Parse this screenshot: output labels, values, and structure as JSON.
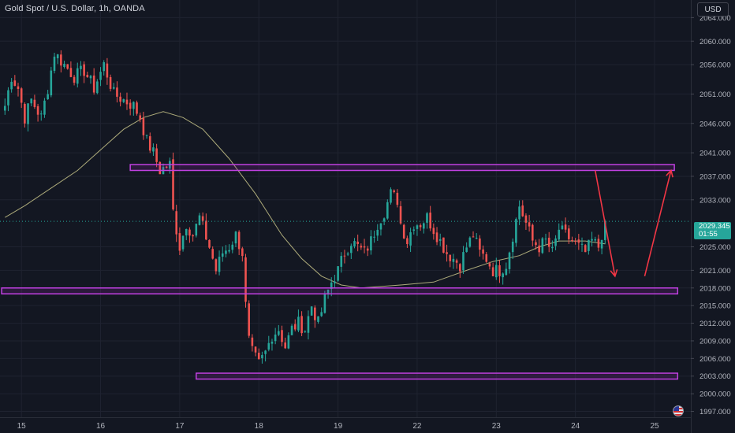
{
  "header": {
    "title": "Gold Spot / U.S. Dollar, 1h, OANDA",
    "currency_button": "USD"
  },
  "last_price": {
    "value": "2029.345",
    "countdown": "01:55"
  },
  "colors": {
    "background": "#131722",
    "up": "#26a69a",
    "down": "#ef5350",
    "ma_line": "#c8c48a",
    "zone": "#c040e0",
    "arrow": "#f23645"
  },
  "chart_data": {
    "type": "candlestick",
    "xlabel": "",
    "ylabel": "",
    "x_ticks": [
      {
        "label": "15",
        "index": 5
      },
      {
        "label": "16",
        "index": 29
      },
      {
        "label": "17",
        "index": 53
      },
      {
        "label": "18",
        "index": 77
      },
      {
        "label": "19",
        "index": 101
      },
      {
        "label": "22",
        "index": 125
      },
      {
        "label": "23",
        "index": 149
      },
      {
        "label": "24",
        "index": 173
      },
      {
        "label": "25",
        "index": 197
      }
    ],
    "y_ticks": [
      "2064.000",
      "2060.000",
      "2056.000",
      "2051.000",
      "2046.000",
      "2041.000",
      "2037.000",
      "2033.000",
      "2025.000",
      "2021.000",
      "2018.000",
      "2015.000",
      "2012.000",
      "2009.000",
      "2006.000",
      "2003.000",
      "2000.000",
      "1997.000"
    ],
    "ylim": [
      1996,
      2067
    ],
    "candle_count": 183,
    "anchors": [
      [
        0,
        2049
      ],
      [
        2,
        2054
      ],
      [
        4,
        2052
      ],
      [
        6,
        2047
      ],
      [
        8,
        2050
      ],
      [
        11,
        2047
      ],
      [
        13,
        2052
      ],
      [
        15,
        2058
      ],
      [
        18,
        2056
      ],
      [
        21,
        2054
      ],
      [
        24,
        2055
      ],
      [
        27,
        2052
      ],
      [
        30,
        2056
      ],
      [
        33,
        2051
      ],
      [
        36,
        2050
      ],
      [
        39,
        2049
      ],
      [
        41,
        2047
      ],
      [
        43,
        2043
      ],
      [
        45,
        2041
      ],
      [
        47,
        2038
      ],
      [
        50,
        2039
      ],
      [
        51,
        2031
      ],
      [
        53,
        2025
      ],
      [
        55,
        2029
      ],
      [
        57,
        2027
      ],
      [
        59,
        2030
      ],
      [
        62,
        2025
      ],
      [
        64,
        2021
      ],
      [
        66,
        2024
      ],
      [
        68,
        2025
      ],
      [
        70,
        2027
      ],
      [
        72,
        2024
      ],
      [
        73,
        2015
      ],
      [
        74,
        2009
      ],
      [
        75,
        2007
      ],
      [
        77,
        2005
      ],
      [
        79,
        2007
      ],
      [
        81,
        2010
      ],
      [
        83,
        2011
      ],
      [
        85,
        2008
      ],
      [
        87,
        2011
      ],
      [
        89,
        2012
      ],
      [
        91,
        2011
      ],
      [
        93,
        2015
      ],
      [
        95,
        2012
      ],
      [
        97,
        2016
      ],
      [
        99,
        2019
      ],
      [
        101,
        2021
      ],
      [
        103,
        2024
      ],
      [
        105,
        2026
      ],
      [
        107,
        2025
      ],
      [
        109,
        2024
      ],
      [
        111,
        2026
      ],
      [
        113,
        2029
      ],
      [
        115,
        2031
      ],
      [
        117,
        2034
      ],
      [
        119,
        2033
      ],
      [
        120,
        2029
      ],
      [
        122,
        2026
      ],
      [
        124,
        2029
      ],
      [
        126,
        2029
      ],
      [
        128,
        2030
      ],
      [
        130,
        2028
      ],
      [
        132,
        2026
      ],
      [
        134,
        2024
      ],
      [
        136,
        2023
      ],
      [
        138,
        2022
      ],
      [
        140,
        2025
      ],
      [
        142,
        2027
      ],
      [
        144,
        2024
      ],
      [
        146,
        2023
      ],
      [
        148,
        2021
      ],
      [
        150,
        2021
      ],
      [
        152,
        2022
      ],
      [
        154,
        2027
      ],
      [
        156,
        2032
      ],
      [
        158,
        2029
      ],
      [
        160,
        2026
      ],
      [
        162,
        2025
      ],
      [
        164,
        2026
      ],
      [
        166,
        2024
      ],
      [
        168,
        2028
      ],
      [
        170,
        2027
      ],
      [
        172,
        2026
      ],
      [
        174,
        2025
      ],
      [
        176,
        2024
      ],
      [
        178,
        2026
      ],
      [
        180,
        2025
      ],
      [
        182,
        2029.345
      ]
    ],
    "moving_average": [
      [
        0,
        2030
      ],
      [
        6,
        2032
      ],
      [
        14,
        2035
      ],
      [
        22,
        2038
      ],
      [
        30,
        2042
      ],
      [
        36,
        2045
      ],
      [
        42,
        2047
      ],
      [
        48,
        2048
      ],
      [
        54,
        2047
      ],
      [
        60,
        2045
      ],
      [
        68,
        2040
      ],
      [
        76,
        2034
      ],
      [
        84,
        2027
      ],
      [
        90,
        2023
      ],
      [
        96,
        2020
      ],
      [
        102,
        2018.5
      ],
      [
        108,
        2018
      ],
      [
        120,
        2018.5
      ],
      [
        130,
        2019
      ],
      [
        140,
        2021
      ],
      [
        148,
        2022.5
      ],
      [
        156,
        2023.5
      ],
      [
        162,
        2025
      ],
      [
        168,
        2026
      ],
      [
        176,
        2026
      ],
      [
        182,
        2025.5
      ]
    ],
    "zones": [
      {
        "from_index": 38,
        "to_index": 203,
        "low": 2038,
        "high": 2039
      },
      {
        "from_index": -1,
        "to_index": 204,
        "low": 2017,
        "high": 2018
      },
      {
        "from_index": 58,
        "to_index": 204,
        "low": 2002.5,
        "high": 2003.5
      }
    ],
    "projection": [
      {
        "from": [
          179,
          2038
        ],
        "to": [
          185,
          2020
        ]
      },
      {
        "from": [
          194,
          2020
        ],
        "to": [
          202,
          2038
        ]
      }
    ],
    "x_axis_range": [
      -1.5,
      208
    ]
  }
}
